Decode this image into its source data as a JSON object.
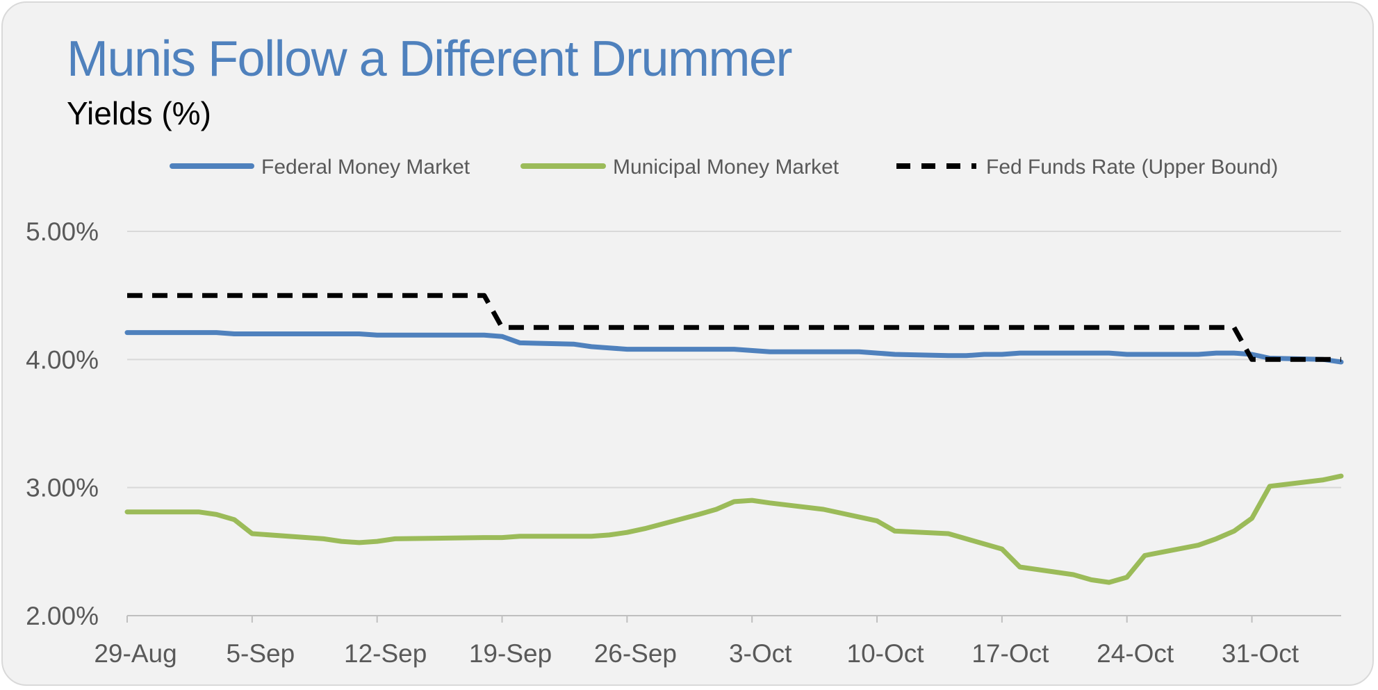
{
  "chart_data": {
    "type": "line",
    "title": "Munis Follow a Different Drummer",
    "subtitle": "Yields (%)",
    "xlabel": "",
    "ylabel": "",
    "ylim": [
      2.0,
      5.0
    ],
    "yticks": [
      2.0,
      3.0,
      4.0,
      5.0
    ],
    "ytick_labels": [
      "2.00%",
      "3.00%",
      "4.00%",
      "5.00%"
    ],
    "grid": true,
    "legend_position": "top",
    "x_tick_labels": [
      "29-Aug",
      "5-Sep",
      "12-Sep",
      "19-Sep",
      "26-Sep",
      "3-Oct",
      "10-Oct",
      "17-Oct",
      "24-Oct",
      "31-Oct"
    ],
    "x_tick_dates": [
      "2024-08-29",
      "2024-09-05",
      "2024-09-12",
      "2024-09-19",
      "2024-09-26",
      "2024-10-03",
      "2024-10-10",
      "2024-10-17",
      "2024-10-24",
      "2024-10-31"
    ],
    "x_range": [
      "2024-08-29",
      "2024-11-05"
    ],
    "series": [
      {
        "name": "Federal Money Market",
        "color": "#4f81bd",
        "style": "solid",
        "points": [
          [
            "2024-08-29",
            4.21
          ],
          [
            "2024-09-03",
            4.21
          ],
          [
            "2024-09-04",
            4.2
          ],
          [
            "2024-09-11",
            4.2
          ],
          [
            "2024-09-12",
            4.19
          ],
          [
            "2024-09-18",
            4.19
          ],
          [
            "2024-09-19",
            4.18
          ],
          [
            "2024-09-20",
            4.13
          ],
          [
            "2024-09-23",
            4.12
          ],
          [
            "2024-09-24",
            4.1
          ],
          [
            "2024-09-25",
            4.09
          ],
          [
            "2024-09-26",
            4.08
          ],
          [
            "2024-10-02",
            4.08
          ],
          [
            "2024-10-04",
            4.06
          ],
          [
            "2024-10-09",
            4.06
          ],
          [
            "2024-10-10",
            4.05
          ],
          [
            "2024-10-11",
            4.04
          ],
          [
            "2024-10-14",
            4.03
          ],
          [
            "2024-10-15",
            4.03
          ],
          [
            "2024-10-16",
            4.04
          ],
          [
            "2024-10-17",
            4.04
          ],
          [
            "2024-10-18",
            4.05
          ],
          [
            "2024-10-23",
            4.05
          ],
          [
            "2024-10-24",
            4.04
          ],
          [
            "2024-10-28",
            4.04
          ],
          [
            "2024-10-29",
            4.05
          ],
          [
            "2024-10-30",
            4.05
          ],
          [
            "2024-10-31",
            4.04
          ],
          [
            "2024-11-01",
            4.01
          ],
          [
            "2024-11-04",
            4.0
          ],
          [
            "2024-11-05",
            3.98
          ]
        ]
      },
      {
        "name": "Municipal Money Market",
        "color": "#9bbb59",
        "style": "solid",
        "points": [
          [
            "2024-08-29",
            2.81
          ],
          [
            "2024-09-02",
            2.81
          ],
          [
            "2024-09-03",
            2.79
          ],
          [
            "2024-09-04",
            2.75
          ],
          [
            "2024-09-05",
            2.64
          ],
          [
            "2024-09-09",
            2.6
          ],
          [
            "2024-09-10",
            2.58
          ],
          [
            "2024-09-11",
            2.57
          ],
          [
            "2024-09-12",
            2.58
          ],
          [
            "2024-09-13",
            2.6
          ],
          [
            "2024-09-18",
            2.61
          ],
          [
            "2024-09-19",
            2.61
          ],
          [
            "2024-09-20",
            2.62
          ],
          [
            "2024-09-24",
            2.62
          ],
          [
            "2024-09-25",
            2.63
          ],
          [
            "2024-09-26",
            2.65
          ],
          [
            "2024-09-27",
            2.68
          ],
          [
            "2024-09-30",
            2.79
          ],
          [
            "2024-10-01",
            2.83
          ],
          [
            "2024-10-02",
            2.89
          ],
          [
            "2024-10-03",
            2.9
          ],
          [
            "2024-10-04",
            2.88
          ],
          [
            "2024-10-07",
            2.83
          ],
          [
            "2024-10-08",
            2.8
          ],
          [
            "2024-10-09",
            2.77
          ],
          [
            "2024-10-10",
            2.74
          ],
          [
            "2024-10-11",
            2.66
          ],
          [
            "2024-10-14",
            2.64
          ],
          [
            "2024-10-15",
            2.6
          ],
          [
            "2024-10-16",
            2.56
          ],
          [
            "2024-10-17",
            2.52
          ],
          [
            "2024-10-18",
            2.38
          ],
          [
            "2024-10-21",
            2.32
          ],
          [
            "2024-10-22",
            2.28
          ],
          [
            "2024-10-23",
            2.26
          ],
          [
            "2024-10-24",
            2.3
          ],
          [
            "2024-10-25",
            2.47
          ],
          [
            "2024-10-28",
            2.55
          ],
          [
            "2024-10-29",
            2.6
          ],
          [
            "2024-10-30",
            2.66
          ],
          [
            "2024-10-31",
            2.76
          ],
          [
            "2024-11-01",
            3.01
          ],
          [
            "2024-11-04",
            3.06
          ],
          [
            "2024-11-05",
            3.09
          ]
        ]
      },
      {
        "name": "Fed Funds Rate (Upper Bound)",
        "color": "#000000",
        "style": "dashed",
        "points": [
          [
            "2024-08-29",
            4.5
          ],
          [
            "2024-09-18",
            4.5
          ],
          [
            "2024-09-19",
            4.25
          ],
          [
            "2024-10-30",
            4.25
          ],
          [
            "2024-10-31",
            4.0
          ],
          [
            "2024-11-05",
            4.0
          ]
        ]
      }
    ]
  }
}
